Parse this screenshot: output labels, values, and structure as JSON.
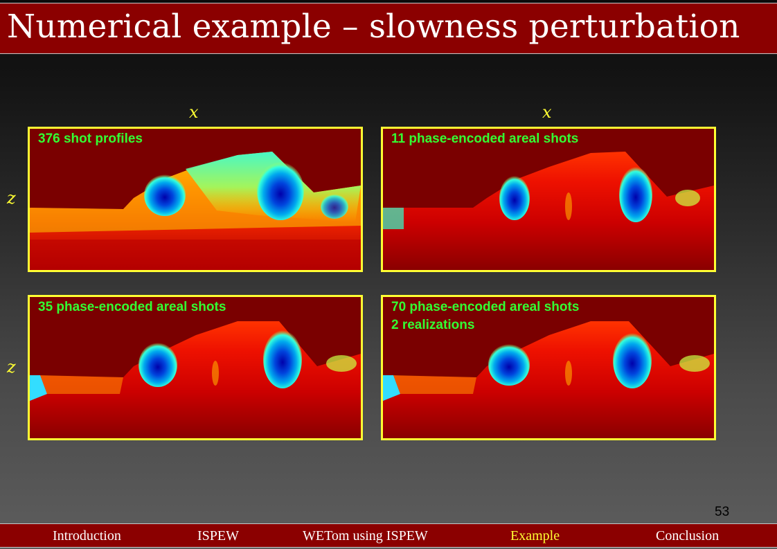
{
  "slide": {
    "title": "Numerical example – slowness perturbation",
    "page_number": "53"
  },
  "axes": {
    "x_label": "x",
    "z_label": "z"
  },
  "panels": [
    {
      "label": "376 shot profiles",
      "label2": ""
    },
    {
      "label": "11 phase-encoded areal shots",
      "label2": ""
    },
    {
      "label": "35 phase-encoded areal shots",
      "label2": ""
    },
    {
      "label": "70 phase-encoded areal shots",
      "label2": "2 realizations"
    }
  ],
  "colors": {
    "title_bar": "#8b0000",
    "panel_border": "#ffff33",
    "panel_label": "#33ff33",
    "nav_active": "#ffff33"
  },
  "nav": {
    "items": [
      {
        "label": "Introduction"
      },
      {
        "label": "ISPEW"
      },
      {
        "label": "WETom using ISPEW"
      },
      {
        "label": "Example",
        "active": true
      },
      {
        "label": "Conclusion"
      }
    ]
  }
}
